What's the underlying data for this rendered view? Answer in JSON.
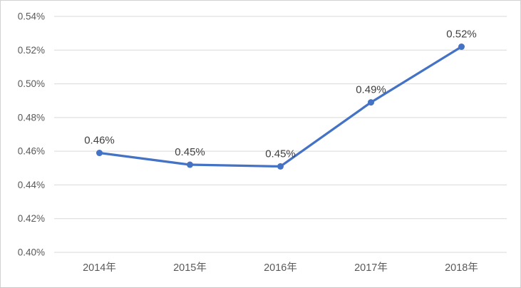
{
  "chart_data": {
    "type": "line",
    "title": "",
    "xlabel": "",
    "ylabel": "",
    "categories": [
      "2014年",
      "2015年",
      "2016年",
      "2017年",
      "2018年"
    ],
    "values": [
      0.459,
      0.452,
      0.451,
      0.489,
      0.522
    ],
    "data_labels": [
      "0.46%",
      "0.45%",
      "0.45%",
      "0.49%",
      "0.52%"
    ],
    "y_ticks": [
      0.4,
      0.42,
      0.44,
      0.46,
      0.48,
      0.5,
      0.52,
      0.54
    ],
    "y_tick_labels": [
      "0.40%",
      "0.42%",
      "0.44%",
      "0.46%",
      "0.48%",
      "0.50%",
      "0.52%",
      "0.54%"
    ],
    "ylim": [
      0.4,
      0.54
    ],
    "grid": true,
    "legend_position": "none",
    "colors": {
      "series": "#4472C4",
      "marker": "#4472C4",
      "gridline": "#D9D9D9",
      "axis_line": "#D9D9D9",
      "tick_text": "#595959",
      "data_label_text": "#404040",
      "background": "#FFFFFF",
      "frame_border": "#D2D2D2"
    }
  }
}
